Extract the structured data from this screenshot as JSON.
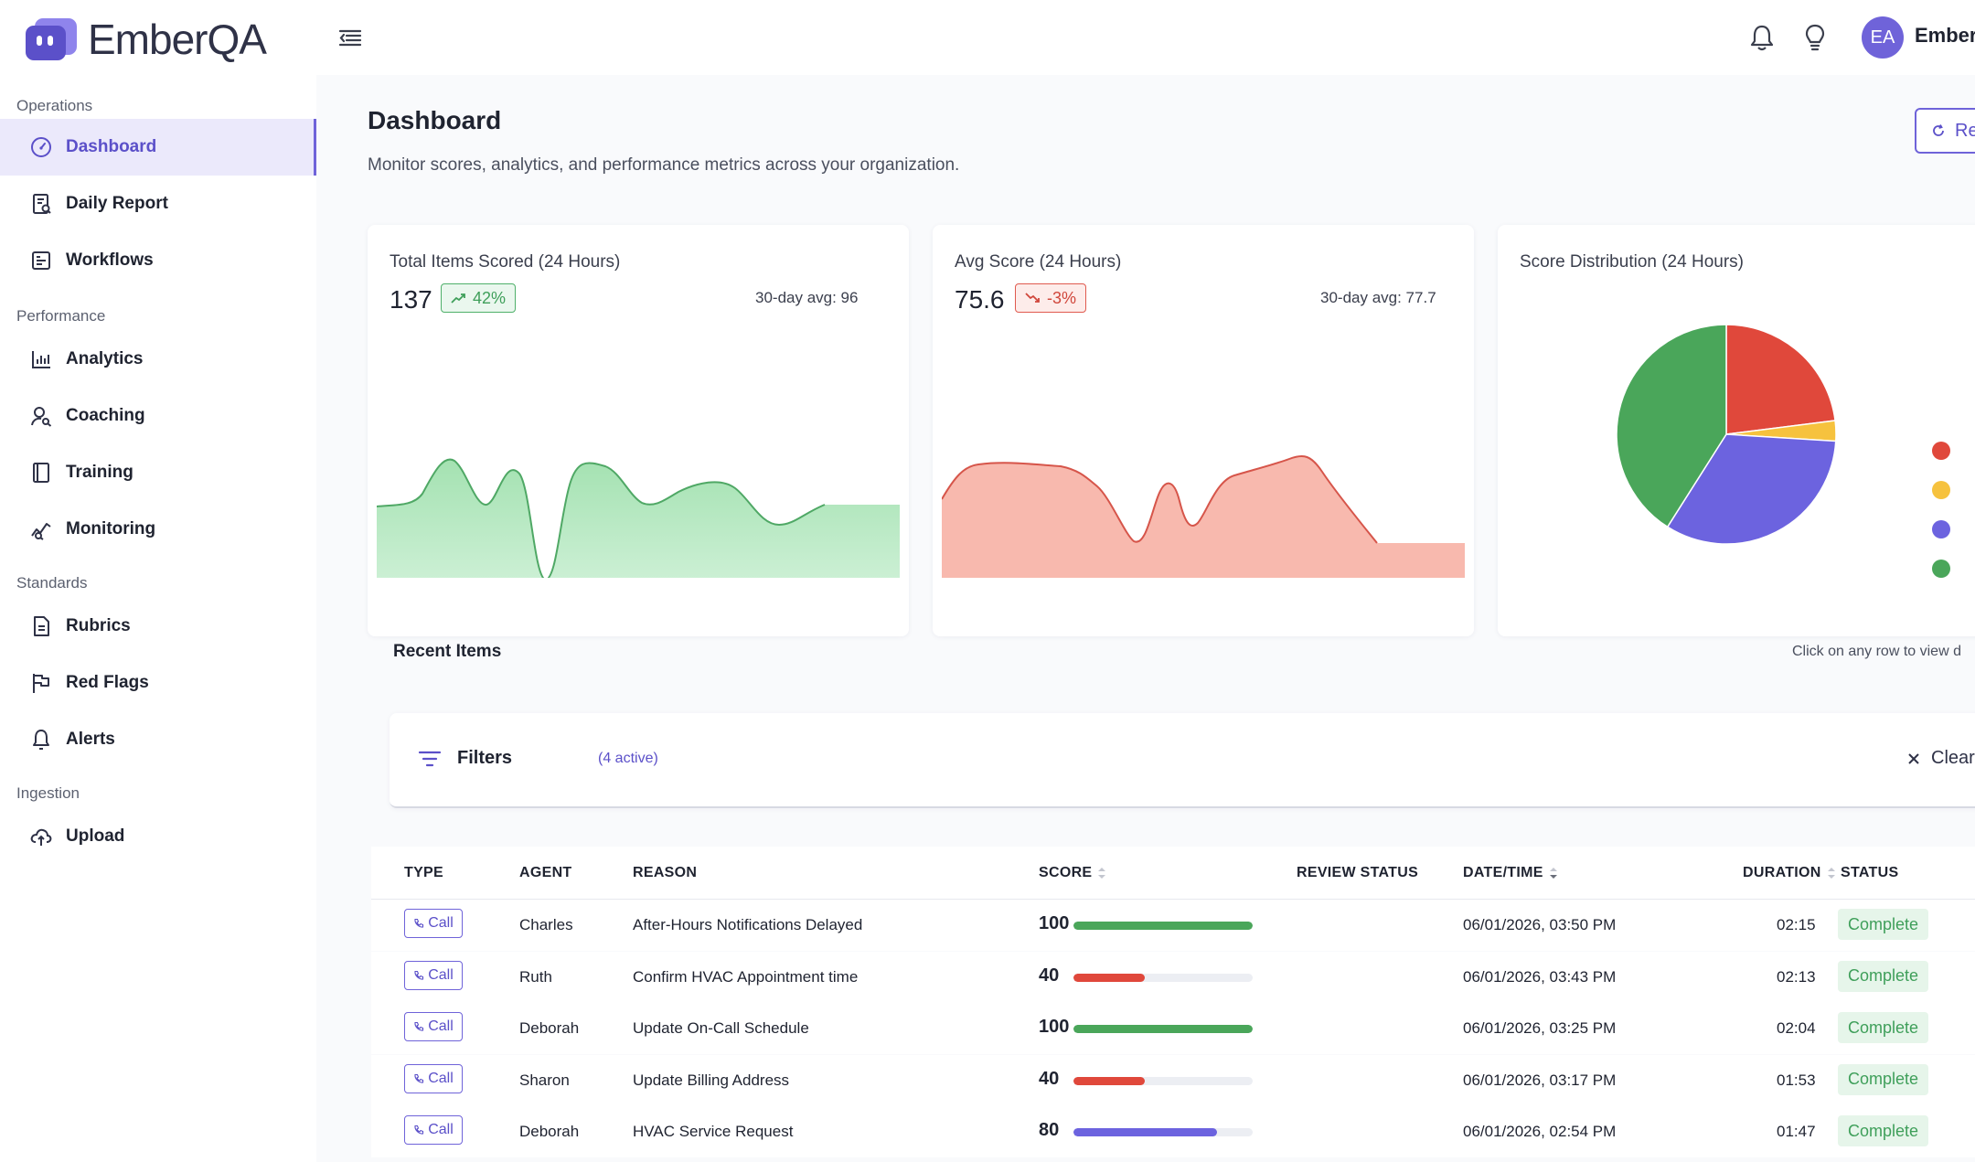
{
  "app": {
    "name": "EmberQA"
  },
  "user": {
    "initials": "EA",
    "name": "EmberQ"
  },
  "sidebar": {
    "sections": [
      {
        "title": "Operations"
      },
      {
        "title": "Performance"
      },
      {
        "title": "Standards"
      },
      {
        "title": "Ingestion"
      }
    ],
    "items": [
      {
        "label": "Dashboard",
        "icon": "gauge-icon",
        "active": true
      },
      {
        "label": "Daily Report",
        "icon": "report-icon"
      },
      {
        "label": "Workflows",
        "icon": "workflow-icon"
      },
      {
        "label": "Analytics",
        "icon": "bar-chart-icon"
      },
      {
        "label": "Coaching",
        "icon": "coaching-icon"
      },
      {
        "label": "Training",
        "icon": "book-icon"
      },
      {
        "label": "Monitoring",
        "icon": "monitoring-icon"
      },
      {
        "label": "Rubrics",
        "icon": "document-icon"
      },
      {
        "label": "Red Flags",
        "icon": "flag-icon"
      },
      {
        "label": "Alerts",
        "icon": "bell-icon"
      },
      {
        "label": "Upload",
        "icon": "cloud-upload-icon"
      }
    ]
  },
  "header": {
    "title": "Dashboard",
    "subtitle": "Monitor scores, analytics, and performance metrics across your organization.",
    "refresh_label": "Re"
  },
  "kpis": [
    {
      "title": "Total Items Scored (24 Hours)",
      "value": "137",
      "change": "42%",
      "direction": "up",
      "avg": "30-day avg: 96",
      "color": "#4fb06a"
    },
    {
      "title": "Avg Score (24 Hours)",
      "value": "75.6",
      "change": "-3%",
      "direction": "down",
      "avg": "30-day avg: 77.7",
      "color": "#e05a4f"
    }
  ],
  "distribution": {
    "title": "Score Distribution (24 Hours)",
    "slices": [
      {
        "value": 23,
        "color": "#e0483b"
      },
      {
        "value": 3,
        "color": "#f6c23e"
      },
      {
        "value": 33,
        "color": "#6c63df"
      },
      {
        "value": 41,
        "color": "#4aa65a"
      }
    ]
  },
  "recent": {
    "title": "Recent Items",
    "hint": "Click on any row to view d",
    "filters_label": "Filters",
    "filters_count": "(4 active)",
    "clear_label": "Clear All",
    "columns": {
      "type": "TYPE",
      "agent": "AGENT",
      "reason": "REASON",
      "score": "SCORE",
      "review": "REVIEW STATUS",
      "datetime": "DATE/TIME",
      "duration": "DURATION",
      "status": "STATUS"
    },
    "rows": [
      {
        "type": "Call",
        "agent": "Charles",
        "reason": "After-Hours Notifications Delayed",
        "score": 100,
        "score_label": "100",
        "color": "#4aa65a",
        "datetime": "06/01/2026, 03:50 PM",
        "duration": "02:15",
        "status": "Complete"
      },
      {
        "type": "Call",
        "agent": "Ruth",
        "reason": "Confirm HVAC Appointment time",
        "score": 40,
        "score_label": "40",
        "color": "#e0483b",
        "datetime": "06/01/2026, 03:43 PM",
        "duration": "02:13",
        "status": "Complete"
      },
      {
        "type": "Call",
        "agent": "Deborah",
        "reason": "Update On-Call Schedule",
        "score": 100,
        "score_label": "100",
        "color": "#4aa65a",
        "datetime": "06/01/2026, 03:25 PM",
        "duration": "02:04",
        "status": "Complete"
      },
      {
        "type": "Call",
        "agent": "Sharon",
        "reason": "Update Billing Address",
        "score": 40,
        "score_label": "40",
        "color": "#e0483b",
        "datetime": "06/01/2026, 03:17 PM",
        "duration": "01:53",
        "status": "Complete"
      },
      {
        "type": "Call",
        "agent": "Deborah",
        "reason": "HVAC Service Request",
        "score": 80,
        "score_label": "80",
        "color": "#6c63df",
        "datetime": "06/01/2026, 02:54 PM",
        "duration": "01:47",
        "status": "Complete"
      }
    ]
  }
}
